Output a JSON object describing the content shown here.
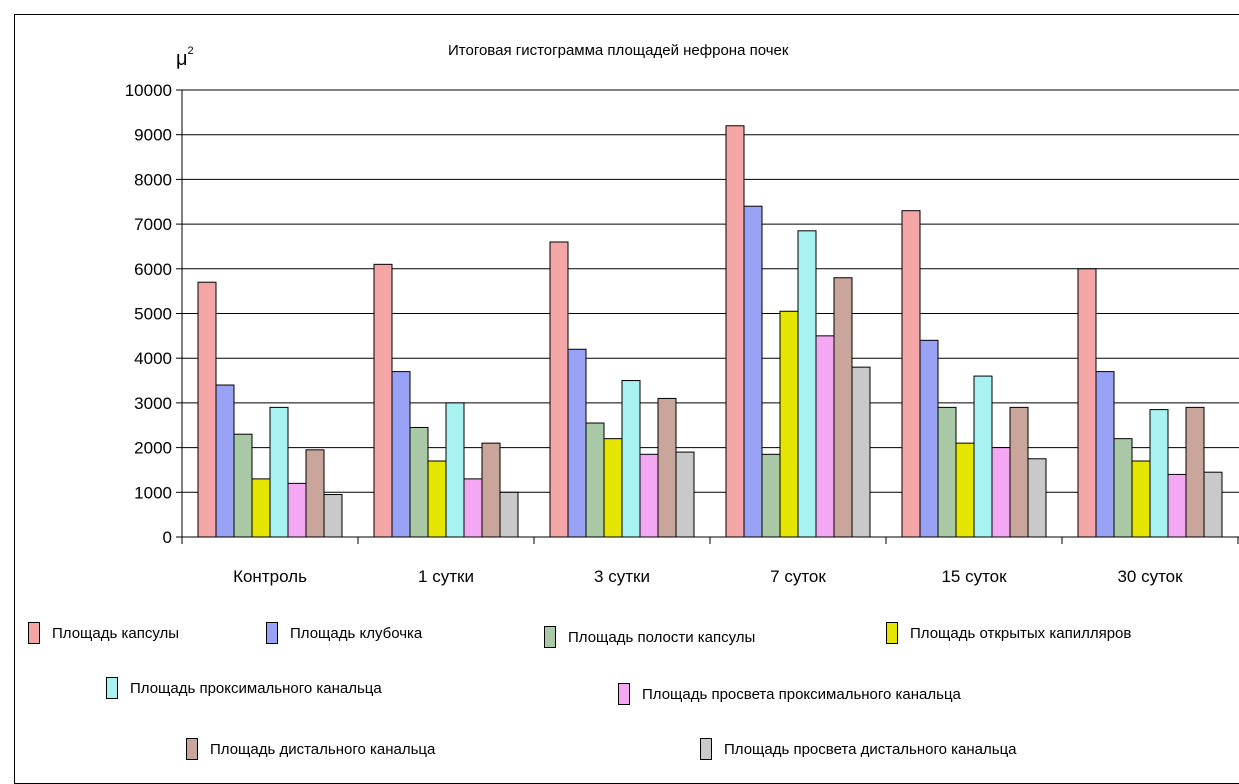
{
  "chart_data": {
    "type": "bar",
    "title": "Итоговая гистограмма площадей нефрона почек",
    "ylabel": "μ",
    "ylabel_sup": "2",
    "ylim": [
      0,
      10000
    ],
    "yticks": [
      "0",
      "1000",
      "2000",
      "3000",
      "4000",
      "5000",
      "6000",
      "7000",
      "8000",
      "9000",
      "10000"
    ],
    "categories": [
      "Контроль",
      "1 сутки",
      "3 сутки",
      "7 суток",
      "15 суток",
      "30 суток"
    ],
    "grid": true,
    "legend_position": "bottom",
    "series": [
      {
        "name": "Площадь капсулы",
        "color": "#f4a6a6",
        "values": [
          5700,
          6100,
          6600,
          9200,
          7300,
          6000
        ]
      },
      {
        "name": "Площадь клубочка",
        "color": "#9aa2f5",
        "values": [
          3400,
          3700,
          4200,
          7400,
          4400,
          3700
        ]
      },
      {
        "name": "Площадь полости капсулы",
        "color": "#a9c9a6",
        "values": [
          2300,
          2450,
          2550,
          1850,
          2900,
          2200
        ]
      },
      {
        "name": "Площадь открытых капилляров",
        "color": "#e5e500",
        "values": [
          1300,
          1700,
          2200,
          5050,
          2100,
          1700
        ]
      },
      {
        "name": "Площадь проксимального канальца",
        "color": "#a8f2f2",
        "values": [
          2900,
          3000,
          3500,
          6850,
          3600,
          2850
        ]
      },
      {
        "name": "Площадь просвета проксимального канальца",
        "color": "#f4a8f4",
        "values": [
          1200,
          1300,
          1850,
          4500,
          2000,
          1400
        ]
      },
      {
        "name": "Площадь дистального канальца",
        "color": "#c9a59b",
        "values": [
          1950,
          2100,
          3100,
          5800,
          2900,
          2900
        ]
      },
      {
        "name": "Площадь просвета дистального канальца",
        "color": "#c9c9c9",
        "values": [
          950,
          1000,
          1900,
          3800,
          1750,
          1450
        ]
      }
    ]
  }
}
